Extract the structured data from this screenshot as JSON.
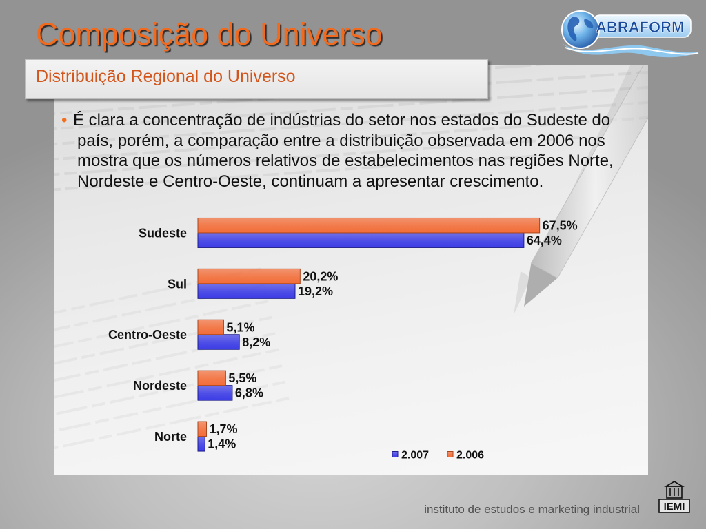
{
  "slide": {
    "title": "Composição do Universo",
    "subtitle": "Distribuição Regional do Universo"
  },
  "header_logo": {
    "text": "ABRAFORM",
    "icon": "globe-icon"
  },
  "bullet": {
    "marker": "•",
    "lines": [
      "É clara a concentração de indústrias do setor nos estados do Sudeste do",
      "país, porém, a comparação entre a distribuição observada em 2006 nos",
      "mostra que os números relativos de estabelecimentos nas regiões Norte,",
      "Nordeste e Centro-Oeste, continuam a apresentar crescimento."
    ]
  },
  "chart_data": {
    "type": "bar",
    "orientation": "horizontal",
    "categories": [
      "Sudeste",
      "Sul",
      "Centro-Oeste",
      "Nordeste",
      "Norte"
    ],
    "series": [
      {
        "name": "2.007",
        "values": [
          64.4,
          19.2,
          8.2,
          6.8,
          1.4
        ],
        "labels": [
          "64,4%",
          "19,2%",
          "8,2%",
          "6,8%",
          "1,4%"
        ],
        "color": "#3c3ce6",
        "edge_color": "#1e1e8c"
      },
      {
        "name": "2.006",
        "values": [
          67.5,
          20.2,
          5.1,
          5.5,
          1.7
        ],
        "labels": [
          "67,5%",
          "20,2%",
          "5,1%",
          "5,5%",
          "1,7%"
        ],
        "color": "#f36d38",
        "edge_color": "#a8461c"
      }
    ],
    "unit": "%",
    "xlim": [
      0,
      70
    ],
    "grid": false,
    "axes_visible": false,
    "legend": "bottom-right"
  },
  "footer": {
    "text": "instituto de estudos e marketing industrial",
    "logo_text": "IEMI",
    "logo_icon": "building-icon"
  },
  "colors": {
    "title": "#f26a1e",
    "subtitle": "#d2561c",
    "bullet": "#f07020",
    "text": "#111111",
    "footer_text": "#505050"
  }
}
